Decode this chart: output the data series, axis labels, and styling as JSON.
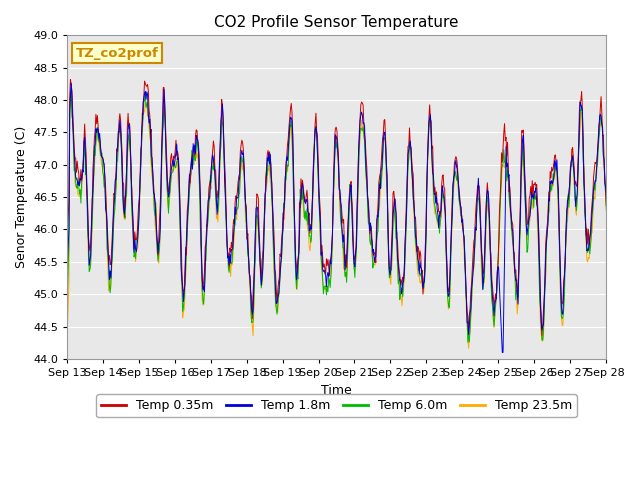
{
  "title": "CO2 Profile Sensor Temperature",
  "xlabel": "Time",
  "ylabel": "Senor Temperature (C)",
  "ylim": [
    44.0,
    49.0
  ],
  "yticks": [
    44.0,
    44.5,
    45.0,
    45.5,
    46.0,
    46.5,
    47.0,
    47.5,
    48.0,
    48.5,
    49.0
  ],
  "xtick_labels": [
    "Sep 13",
    "Sep 14",
    "Sep 15",
    "Sep 16",
    "Sep 17",
    "Sep 18",
    "Sep 19",
    "Sep 20",
    "Sep 21",
    "Sep 22",
    "Sep 23",
    "Sep 24",
    "Sep 25",
    "Sep 26",
    "Sep 27",
    "Sep 28"
  ],
  "series": [
    {
      "label": "Temp 0.35m",
      "color": "#cc0000"
    },
    {
      "label": "Temp 1.8m",
      "color": "#0000dd"
    },
    {
      "label": "Temp 6.0m",
      "color": "#00bb00"
    },
    {
      "label": "Temp 23.5m",
      "color": "#ffaa00"
    }
  ],
  "annotation_text": "TZ_co2prof",
  "annotation_bg": "#ffffcc",
  "annotation_border": "#cc8800",
  "plot_bg": "#e8e8e8",
  "fig_bg": "#ffffff",
  "grid_color": "#ffffff",
  "title_fontsize": 11,
  "axis_label_fontsize": 9,
  "tick_fontsize": 8,
  "legend_fontsize": 9
}
